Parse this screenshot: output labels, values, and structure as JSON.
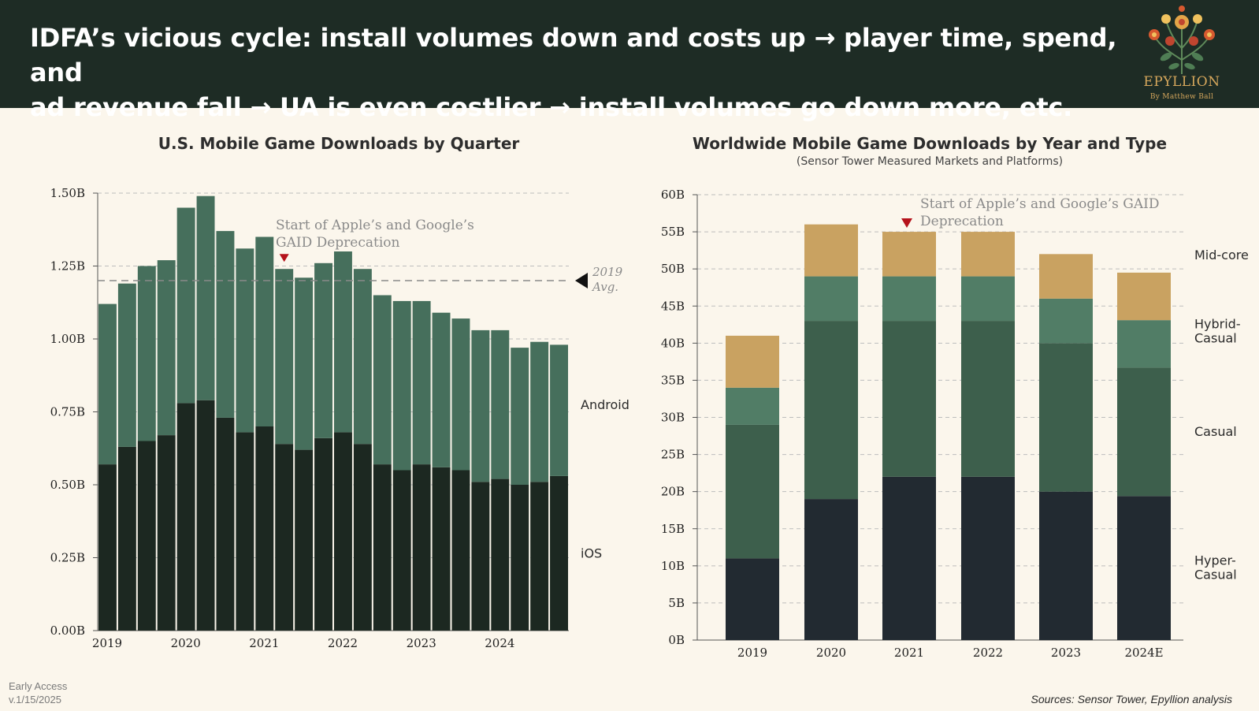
{
  "header": {
    "line1": "IDFA’s vicious cycle: install volumes down and costs up → player time, spend, and",
    "line2": "ad revenue fall → UA is even costlier → install volumes go down more, etc.",
    "brand_name": "EPYLLION",
    "brand_by": "By Matthew Ball",
    "logo_icon": "flower-logo-icon"
  },
  "colors": {
    "header_bg": "#1e2c25",
    "background": "#fbf6ec",
    "ios": "#1c2821",
    "android": "#466f5c",
    "hyper_casual": "#222a31",
    "casual": "#3d5f4c",
    "hybrid_casual": "#517d66",
    "mid_core": "#c9a261",
    "marker": "#b5121b"
  },
  "chart_data": [
    {
      "type": "bar",
      "stacked": true,
      "title": "U.S. Mobile Game Downloads by Quarter",
      "xlabel": "",
      "ylabel": "",
      "ylim": [
        0,
        1.5
      ],
      "y_ticks": [
        "0.00B",
        "0.25B",
        "0.50B",
        "0.75B",
        "1.00B",
        "1.25B",
        "1.50B"
      ],
      "y_tick_values": [
        0,
        0.25,
        0.5,
        0.75,
        1.0,
        1.25,
        1.5
      ],
      "x_tick_labels": [
        "2019",
        "2020",
        "2021",
        "2022",
        "2023",
        "2024"
      ],
      "categories": [
        "Q1 2019",
        "Q2 2019",
        "Q3 2019",
        "Q4 2019",
        "Q1 2020",
        "Q2 2020",
        "Q3 2020",
        "Q4 2020",
        "Q1 2021",
        "Q2 2021",
        "Q3 2021",
        "Q4 2021",
        "Q1 2022",
        "Q2 2022",
        "Q3 2022",
        "Q4 2022",
        "Q1 2023",
        "Q2 2023",
        "Q3 2023",
        "Q4 2023",
        "Q1 2024",
        "Q2 2024",
        "Q3 2024",
        "Q4 2024"
      ],
      "series": [
        {
          "name": "iOS",
          "values": [
            0.57,
            0.63,
            0.65,
            0.67,
            0.78,
            0.79,
            0.73,
            0.68,
            0.7,
            0.64,
            0.62,
            0.66,
            0.68,
            0.64,
            0.57,
            0.55,
            0.57,
            0.56,
            0.55,
            0.51,
            0.52,
            0.5,
            0.51,
            0.53
          ]
        },
        {
          "name": "Android",
          "values": [
            0.55,
            0.56,
            0.6,
            0.6,
            0.67,
            0.7,
            0.64,
            0.63,
            0.65,
            0.6,
            0.59,
            0.6,
            0.62,
            0.6,
            0.58,
            0.58,
            0.56,
            0.53,
            0.52,
            0.52,
            0.51,
            0.47,
            0.48,
            0.45
          ]
        }
      ],
      "reference_line": {
        "value": 1.2,
        "label_line1": "2019",
        "label_line2": "Avg."
      },
      "annotation": {
        "line1": "Start of Apple’s and Google’s",
        "line2": "GAID Deprecation",
        "category_index": 9
      },
      "grid": true
    },
    {
      "type": "bar",
      "stacked": true,
      "title": "Worldwide Mobile Game Downloads by Year and Type",
      "subtitle": "(Sensor Tower Measured Markets and Platforms)",
      "xlabel": "",
      "ylabel": "",
      "ylim": [
        0,
        60
      ],
      "y_ticks": [
        "0B",
        "5B",
        "10B",
        "15B",
        "20B",
        "25B",
        "30B",
        "35B",
        "40B",
        "45B",
        "50B",
        "55B",
        "60B"
      ],
      "y_tick_values": [
        0,
        5,
        10,
        15,
        20,
        25,
        30,
        35,
        40,
        45,
        50,
        55,
        60
      ],
      "categories": [
        "2019",
        "2020",
        "2021",
        "2022",
        "2023",
        "2024E"
      ],
      "series": [
        {
          "name": "Hyper-Casual",
          "label_lines": [
            "Hyper-",
            "Casual"
          ],
          "values": [
            11,
            19,
            22,
            22,
            20,
            19.4
          ]
        },
        {
          "name": "Casual",
          "label_lines": [
            "Casual"
          ],
          "values": [
            18,
            24,
            21,
            21,
            20,
            17.3
          ]
        },
        {
          "name": "Hybrid-Casual",
          "label_lines": [
            "Hybrid-",
            "Casual"
          ],
          "values": [
            5,
            6,
            6,
            6,
            6,
            6.4
          ]
        },
        {
          "name": "Mid-core",
          "label_lines": [
            "Mid-core"
          ],
          "values": [
            7,
            7,
            6,
            6,
            6,
            6.4
          ]
        }
      ],
      "annotation": {
        "line1": "Start of Apple’s and Google’s GAID",
        "line2": "Deprecation"
      },
      "grid": true
    }
  ],
  "footer": {
    "early_access": "Early Access",
    "version": "v.1/15/2025",
    "sources": "Sources: Sensor Tower, Epyllion analysis"
  }
}
